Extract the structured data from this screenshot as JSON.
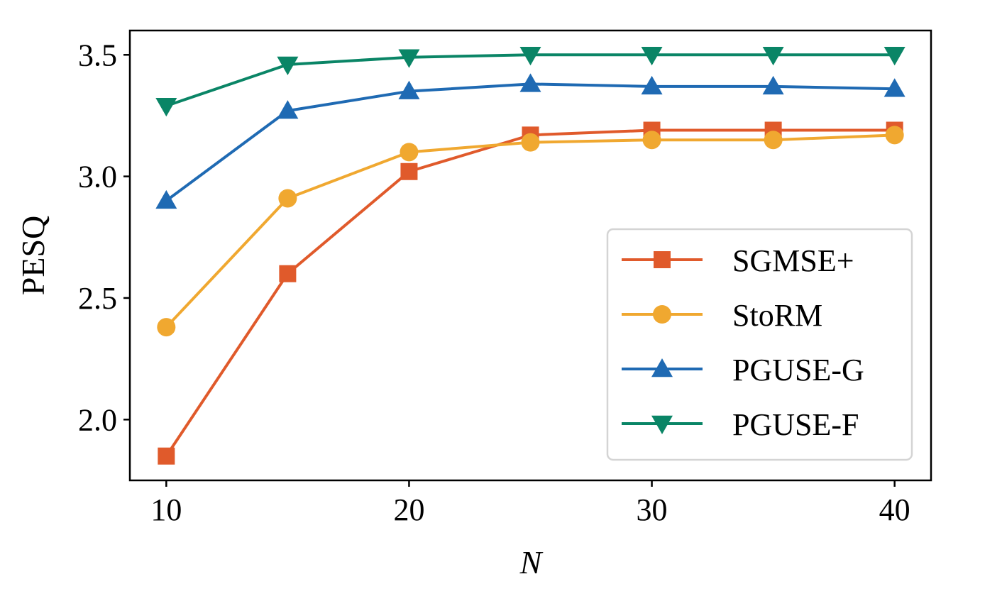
{
  "chart_data": {
    "type": "line",
    "title": "",
    "xlabel": "N",
    "ylabel": "PESQ",
    "x": [
      10,
      15,
      20,
      25,
      30,
      35,
      40
    ],
    "xlim": [
      8.5,
      41.5
    ],
    "ylim": [
      1.75,
      3.6
    ],
    "xticks": [
      10,
      20,
      30,
      40
    ],
    "yticks": [
      2.0,
      2.5,
      3.0,
      3.5
    ],
    "xtick_labels": [
      "10",
      "20",
      "30",
      "40"
    ],
    "ytick_labels": [
      "2.0",
      "2.5",
      "3.0",
      "3.5"
    ],
    "grid": false,
    "legend_position": "lower-right",
    "series": [
      {
        "name": "SGMSE+",
        "color": "#E05A2B",
        "marker": "square",
        "values": [
          1.85,
          2.6,
          3.02,
          3.17,
          3.19,
          3.19,
          3.19
        ]
      },
      {
        "name": "StoRM",
        "color": "#F0A830",
        "marker": "circle",
        "values": [
          2.38,
          2.91,
          3.1,
          3.14,
          3.15,
          3.15,
          3.17
        ]
      },
      {
        "name": "PGUSE-G",
        "color": "#1F6AB3",
        "marker": "triangle-up",
        "values": [
          2.9,
          3.27,
          3.35,
          3.38,
          3.37,
          3.37,
          3.36
        ]
      },
      {
        "name": "PGUSE-F",
        "color": "#0A8566",
        "marker": "triangle-down",
        "values": [
          3.29,
          3.46,
          3.49,
          3.5,
          3.5,
          3.5,
          3.5
        ]
      }
    ]
  }
}
